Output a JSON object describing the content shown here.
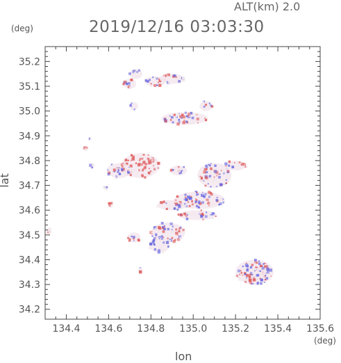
{
  "header": {
    "alt_label": "ALT(km)  2.0",
    "title": "2019/12/16 03:03:30"
  },
  "chart_data": {
    "type": "scatter",
    "title": "2019/12/16 03:03:30",
    "xlabel": "lon",
    "ylabel": "lat",
    "x_unit": "(deg)",
    "y_unit": "(deg)",
    "xlim": [
      134.3,
      135.6
    ],
    "ylim": [
      34.16,
      35.26
    ],
    "xticks": [
      "134.4",
      "134.6",
      "134.8",
      "135.0",
      "135.2",
      "135.4",
      "135.6"
    ],
    "yticks": [
      "34.2",
      "34.3",
      "34.4",
      "34.5",
      "34.6",
      "34.7",
      "34.8",
      "34.9",
      "35.0",
      "35.1",
      "35.2"
    ],
    "grid": false,
    "colors": {
      "positive": "#e06060",
      "negative": "#6a6ae0",
      "near_zero": "#f3e8ee"
    },
    "clusters": [
      {
        "lon": 134.73,
        "lat": 35.15,
        "rx": 0.03,
        "ry": 0.02,
        "polarity": "negative"
      },
      {
        "lon": 134.7,
        "lat": 35.11,
        "rx": 0.03,
        "ry": 0.02,
        "polarity": "mixed"
      },
      {
        "lon": 134.72,
        "lat": 35.02,
        "rx": 0.02,
        "ry": 0.015,
        "polarity": "negative"
      },
      {
        "lon": 134.82,
        "lat": 35.12,
        "rx": 0.05,
        "ry": 0.02,
        "polarity": "mixed"
      },
      {
        "lon": 134.9,
        "lat": 35.13,
        "rx": 0.06,
        "ry": 0.02,
        "polarity": "mixed"
      },
      {
        "lon": 134.96,
        "lat": 34.97,
        "rx": 0.11,
        "ry": 0.025,
        "polarity": "mixed"
      },
      {
        "lon": 135.06,
        "lat": 35.02,
        "rx": 0.03,
        "ry": 0.02,
        "polarity": "mixed"
      },
      {
        "lon": 134.75,
        "lat": 34.78,
        "rx": 0.09,
        "ry": 0.05,
        "polarity": "positive"
      },
      {
        "lon": 134.65,
        "lat": 34.76,
        "rx": 0.06,
        "ry": 0.03,
        "polarity": "mixed"
      },
      {
        "lon": 134.93,
        "lat": 34.76,
        "rx": 0.04,
        "ry": 0.02,
        "polarity": "mixed"
      },
      {
        "lon": 135.1,
        "lat": 34.74,
        "rx": 0.08,
        "ry": 0.05,
        "polarity": "mixed"
      },
      {
        "lon": 135.2,
        "lat": 34.78,
        "rx": 0.05,
        "ry": 0.02,
        "polarity": "mixed"
      },
      {
        "lon": 135.03,
        "lat": 34.64,
        "rx": 0.12,
        "ry": 0.035,
        "polarity": "mixed"
      },
      {
        "lon": 134.9,
        "lat": 34.62,
        "rx": 0.07,
        "ry": 0.02,
        "polarity": "mixed"
      },
      {
        "lon": 135.02,
        "lat": 34.58,
        "rx": 0.09,
        "ry": 0.02,
        "polarity": "mixed"
      },
      {
        "lon": 134.88,
        "lat": 34.51,
        "rx": 0.08,
        "ry": 0.04,
        "polarity": "mixed"
      },
      {
        "lon": 134.84,
        "lat": 34.46,
        "rx": 0.05,
        "ry": 0.03,
        "polarity": "negative"
      },
      {
        "lon": 134.72,
        "lat": 34.49,
        "rx": 0.03,
        "ry": 0.02,
        "polarity": "mixed"
      },
      {
        "lon": 135.29,
        "lat": 34.35,
        "rx": 0.09,
        "ry": 0.05,
        "polarity": "mixed"
      },
      {
        "lon": 135.32,
        "lat": 34.35,
        "rx": 0.04,
        "ry": 0.02,
        "polarity": "negative"
      },
      {
        "lon": 135.28,
        "lat": 34.32,
        "rx": 0.03,
        "ry": 0.015,
        "polarity": "positive"
      },
      {
        "lon": 134.32,
        "lat": 34.52,
        "rx": 0.01,
        "ry": 0.01,
        "polarity": "positive"
      },
      {
        "lon": 134.49,
        "lat": 34.85,
        "rx": 0.01,
        "ry": 0.01,
        "polarity": "positive"
      },
      {
        "lon": 134.51,
        "lat": 34.89,
        "rx": 0.005,
        "ry": 0.005,
        "polarity": "negative"
      },
      {
        "lon": 134.52,
        "lat": 34.78,
        "rx": 0.01,
        "ry": 0.01,
        "polarity": "negative"
      },
      {
        "lon": 134.61,
        "lat": 34.62,
        "rx": 0.01,
        "ry": 0.01,
        "polarity": "positive"
      },
      {
        "lon": 134.59,
        "lat": 34.69,
        "rx": 0.01,
        "ry": 0.01,
        "polarity": "negative"
      },
      {
        "lon": 134.75,
        "lat": 34.36,
        "rx": 0.01,
        "ry": 0.01,
        "polarity": "mixed"
      }
    ]
  }
}
